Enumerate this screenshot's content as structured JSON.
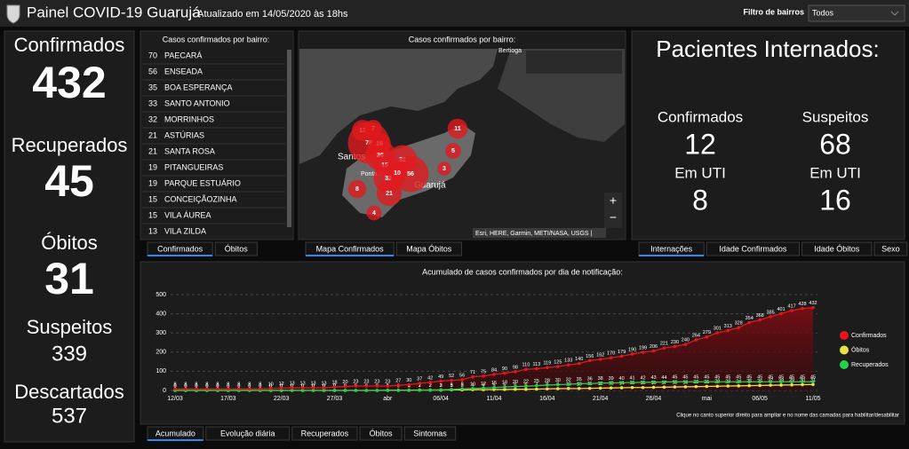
{
  "header": {
    "title": "Painel COVID-19 Guarujá",
    "subtitle": " - Atualizado em 14/05/2020 às 18hs",
    "filter_label": "Filtro de bairros",
    "filter_value": "Todos"
  },
  "summary": [
    {
      "label": "Confirmados",
      "value": 432,
      "color": "#e8141c"
    },
    {
      "label": "Recuperados",
      "value": 45,
      "color": "#22d24a"
    },
    {
      "label": "Óbitos",
      "value": 31,
      "color": "#e8e045"
    },
    {
      "label": "Suspeitos",
      "value": 339,
      "color": "#f0a03c"
    },
    {
      "label": "Descartados",
      "value": 537,
      "color": "#2d8cf0"
    }
  ],
  "neighborhoods": {
    "title": "Casos confirmados por bairro:",
    "rows": [
      {
        "count": 70,
        "name": "PAECARÁ"
      },
      {
        "count": 56,
        "name": "ENSEADA"
      },
      {
        "count": 35,
        "name": "BOA ESPERANÇA"
      },
      {
        "count": 33,
        "name": "SANTO ANTONIO"
      },
      {
        "count": 32,
        "name": "MORRINHOS"
      },
      {
        "count": 21,
        "name": "ASTÚRIAS"
      },
      {
        "count": 21,
        "name": "SANTA ROSA"
      },
      {
        "count": 19,
        "name": "PITANGUEIRAS"
      },
      {
        "count": 19,
        "name": "PARQUE ESTUÁRIO"
      },
      {
        "count": 15,
        "name": "CONCEIÇÃOZINHA"
      },
      {
        "count": 15,
        "name": "VILA ÁUREA"
      },
      {
        "count": 13,
        "name": "VILA ZILDA"
      }
    ],
    "tabs": [
      "Confirmados",
      "Óbitos"
    ]
  },
  "map": {
    "title": "Casos confirmados por bairro:",
    "places": [
      "Bertioga",
      "Santos",
      "Ponta da Praia",
      "Guarujá"
    ],
    "bubbles": [
      13,
      7,
      78,
      16,
      36,
      15,
      32,
      56,
      33,
      10,
      11,
      8,
      4,
      21,
      3,
      5
    ],
    "attribution": "Esri, HERE, Garmin, METI/NASA, USGS |",
    "tabs": [
      "Mapa Confirmados",
      "Mapa Óbitos"
    ]
  },
  "hospital": {
    "title": "Pacientes Internados:",
    "items": [
      {
        "label": "Confirmados",
        "value": 12,
        "color": "#e8141c"
      },
      {
        "label": "Suspeitos",
        "value": 68,
        "color": "#e8141c"
      },
      {
        "label": "Em UTI",
        "value": 8,
        "color": "#f0a03c"
      },
      {
        "label": "Em UTI",
        "value": 16,
        "color": "#f0a03c"
      }
    ],
    "tabs": [
      "Internações",
      "Idade Confirmados",
      "Idade Óbitos",
      "Sexo"
    ]
  },
  "chart_data": {
    "type": "line",
    "title": "Acumulado de casos confirmados por dia de notificação:",
    "categories": [
      "12/03",
      null,
      null,
      null,
      null,
      "17/03",
      null,
      null,
      null,
      null,
      "22/03",
      null,
      null,
      null,
      null,
      "27/03",
      null,
      null,
      null,
      null,
      "abr",
      null,
      null,
      null,
      null,
      "06/04",
      null,
      null,
      null,
      null,
      "11/04",
      null,
      null,
      null,
      null,
      "16/04",
      null,
      null,
      null,
      null,
      "21/04",
      null,
      null,
      null,
      null,
      "26/04",
      null,
      null,
      null,
      null,
      "mai",
      null,
      null,
      null,
      null,
      "06/05",
      null,
      null,
      null,
      null,
      "11/05"
    ],
    "series": [
      {
        "name": "Confirmados",
        "color": "#e8141c",
        "values": [
          8,
          8,
          8,
          8,
          8,
          8,
          8,
          8,
          8,
          10,
          12,
          13,
          13,
          13,
          13,
          18,
          20,
          23,
          23,
          23,
          23,
          27,
          30,
          37,
          42,
          49,
          52,
          56,
          71,
          75,
          84,
          90,
          98,
          110,
          113,
          119,
          125,
          133,
          140,
          156,
          162,
          170,
          179,
          190,
          199,
          206,
          221,
          230,
          240,
          264,
          279,
          301,
          313,
          328,
          354,
          368,
          385,
          401,
          417,
          428,
          432
        ]
      },
      {
        "name": "Óbitos",
        "color": "#e8e045",
        "values": [
          0,
          0,
          0,
          0,
          0,
          0,
          0,
          0,
          0,
          0,
          0,
          0,
          0,
          0,
          0,
          0,
          0,
          0,
          0,
          0,
          1,
          1,
          1,
          2,
          2,
          2,
          3,
          3,
          4,
          4,
          5,
          5,
          6,
          6,
          7,
          8,
          9,
          10,
          10,
          11,
          12,
          13,
          14,
          15,
          15,
          16,
          17,
          18,
          19,
          20,
          21,
          22,
          23,
          24,
          25,
          26,
          27,
          28,
          29,
          30,
          31
        ]
      },
      {
        "name": "Recuperados",
        "color": "#22d24a",
        "values": [
          0,
          0,
          0,
          0,
          0,
          0,
          0,
          0,
          0,
          0,
          0,
          0,
          0,
          0,
          0,
          0,
          0,
          0,
          0,
          0,
          0,
          0,
          0,
          1,
          2,
          3,
          5,
          8,
          10,
          12,
          15,
          18,
          20,
          22,
          25,
          28,
          30,
          32,
          35,
          36,
          38,
          39,
          40,
          41,
          42,
          43,
          44,
          45,
          45,
          45,
          45,
          45,
          45,
          45,
          45,
          45,
          45,
          45,
          45,
          45,
          45
        ]
      }
    ],
    "ylim": [
      0,
      500
    ],
    "yticks": [
      0,
      100,
      200,
      300,
      400,
      500
    ],
    "grid": true,
    "legend": "right",
    "note": "Clique no canto superior direito para ampliar e no nome das camadas para habilitar/desabilitar"
  },
  "chart_tabs": [
    "Acumulado",
    "Evolução diária",
    "Recuperados",
    "Óbitos",
    "Sintomas"
  ]
}
